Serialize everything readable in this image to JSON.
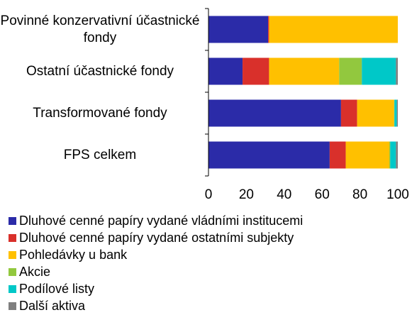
{
  "chart_data": {
    "type": "stacked-barh",
    "categories": [
      "Povinné konzervativní účastnické fondy",
      "Ostatní účastnické fondy",
      "Transformované fondy",
      "FPS celkem"
    ],
    "series": [
      {
        "name": "Dluhové cenné papíry vydané vládními institucemi",
        "color": "#2b2ba8",
        "values": [
          31.5,
          18,
          70,
          64
        ]
      },
      {
        "name": "Dluhové cenné papíry vydané ostatními subjekty",
        "color": "#d9302b",
        "values": [
          0.5,
          14,
          8.5,
          8.5
        ]
      },
      {
        "name": "Pohledávky u bank",
        "color": "#ffc000",
        "values": [
          68,
          37,
          19.5,
          23
        ]
      },
      {
        "name": "Akcie",
        "color": "#92c83e",
        "values": [
          0,
          12,
          0.2,
          0.5
        ]
      },
      {
        "name": "Podílové listy",
        "color": "#00c8c8",
        "values": [
          0,
          18,
          1.3,
          3
        ]
      },
      {
        "name": "Další aktiva",
        "color": "#7f7f7f",
        "values": [
          0,
          1,
          0.5,
          1
        ]
      }
    ],
    "xlim": [
      0,
      100
    ],
    "xticks": [
      0,
      20,
      40,
      60,
      80,
      100
    ]
  }
}
